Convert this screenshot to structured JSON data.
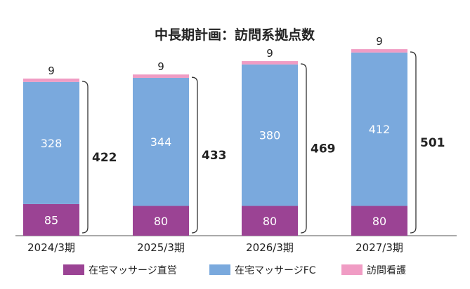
{
  "chart_data": {
    "type": "bar",
    "stacked": true,
    "title": "中長期計画：訪問系拠点数",
    "categories": [
      "2024/3期",
      "2025/3期",
      "2026/3期",
      "2027/3期"
    ],
    "series": [
      {
        "name": "在宅マッサージ直営",
        "color": "#9b4394",
        "label_color": "#ffffff",
        "values": [
          85,
          80,
          80,
          80
        ]
      },
      {
        "name": "在宅マッサージFC",
        "color": "#7aa9dd",
        "label_color": "#ffffff",
        "values": [
          328,
          344,
          380,
          412
        ]
      },
      {
        "name": "訪問看護",
        "color": "#f09cc4",
        "label_color": "#222222",
        "values": [
          9,
          9,
          9,
          9
        ]
      }
    ],
    "totals": [
      422,
      433,
      469,
      501
    ],
    "ylim": [
      0,
      520
    ],
    "legend_position": "bottom",
    "grid": false
  }
}
